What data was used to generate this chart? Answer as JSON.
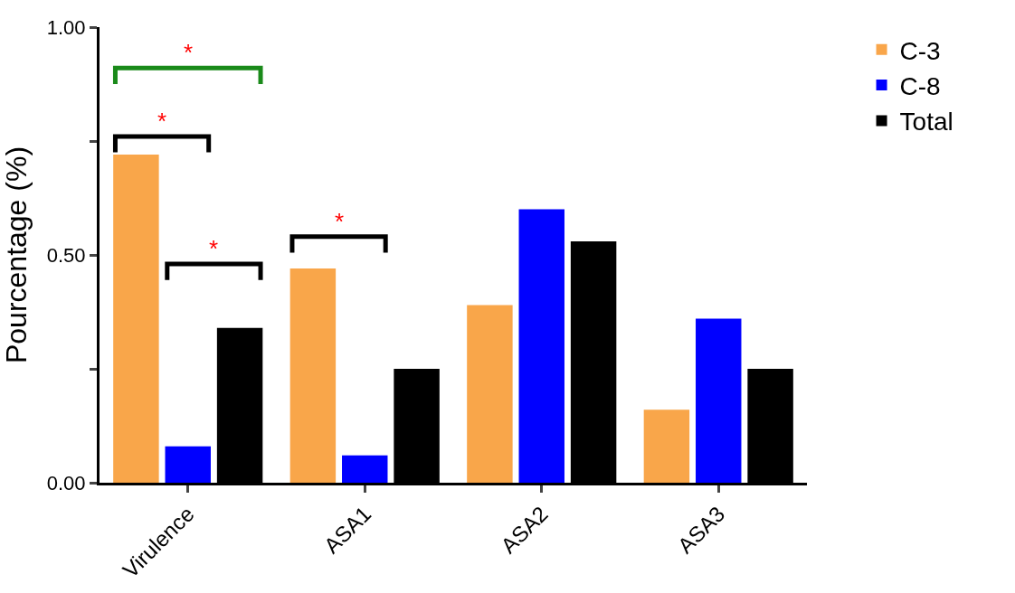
{
  "chart_data": {
    "type": "bar",
    "ylabel": "Pourcentage (%)",
    "categories": [
      "Virulence",
      "ASA1",
      "ASA2",
      "ASA3"
    ],
    "series": [
      {
        "name": "C-3",
        "color": "#f9a64a",
        "values": [
          0.72,
          0.47,
          0.39,
          0.16
        ]
      },
      {
        "name": "C-8",
        "color": "#0000ff",
        "values": [
          0.08,
          0.06,
          0.6,
          0.36
        ]
      },
      {
        "name": "Total",
        "color": "#000000",
        "values": [
          0.34,
          0.25,
          0.53,
          0.25
        ]
      }
    ],
    "ylim": [
      0,
      1
    ],
    "yticks": [
      {
        "value": 0,
        "label": "0.00"
      },
      {
        "value": 0.25,
        "label": null
      },
      {
        "value": 0.5,
        "label": "0.50"
      },
      {
        "value": 0.75,
        "label": null
      },
      {
        "value": 1,
        "label": "1.00"
      }
    ],
    "legend": "top right",
    "annotations": [
      "*",
      "*",
      "*",
      "*"
    ]
  }
}
